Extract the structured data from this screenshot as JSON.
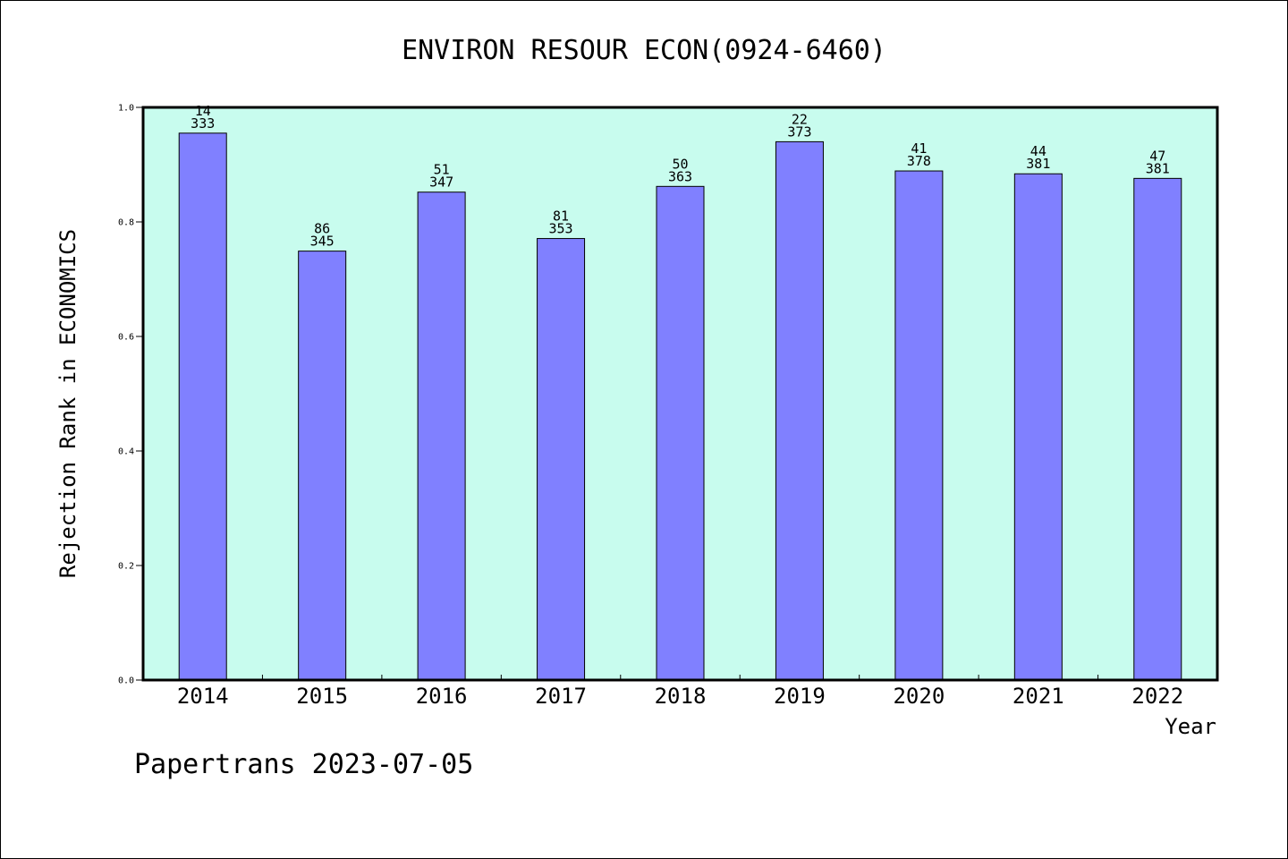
{
  "chart_data": {
    "type": "bar",
    "title": "ENVIRON RESOUR ECON(0924-6460)",
    "xlabel": "Year",
    "ylabel": "Rejection Rank in ECONOMICS",
    "ylim": [
      0,
      1.0
    ],
    "yticks": [
      "0.0",
      "0.2",
      "0.4",
      "0.6",
      "0.8",
      "1.0"
    ],
    "categories": [
      "2014",
      "2015",
      "2016",
      "2017",
      "2018",
      "2019",
      "2020",
      "2021",
      "2022"
    ],
    "values": [
      0.955,
      0.749,
      0.852,
      0.771,
      0.862,
      0.94,
      0.889,
      0.884,
      0.876
    ],
    "rank_labels": [
      "14",
      "86",
      "51",
      "81",
      "50",
      "22",
      "41",
      "44",
      "47"
    ],
    "total_labels": [
      "333",
      "345",
      "347",
      "353",
      "363",
      "373",
      "378",
      "381",
      "381"
    ],
    "grid": false,
    "colors": {
      "plot_background": "#c8fcee",
      "bar_fill": "#8080ff",
      "bar_stroke": "#000000"
    }
  },
  "footer": {
    "text": "Papertrans 2023-07-05"
  }
}
